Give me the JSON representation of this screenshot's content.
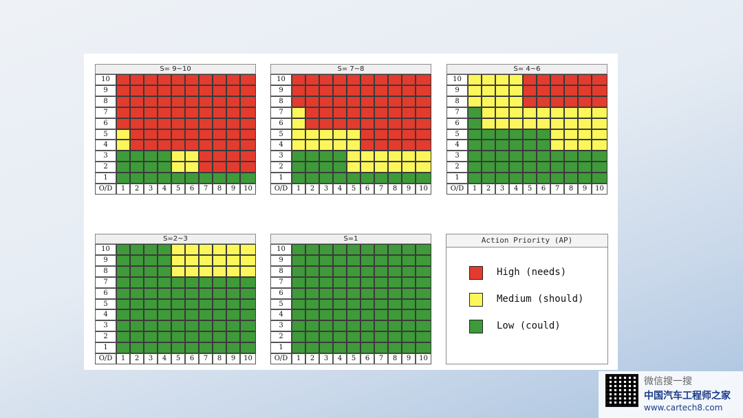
{
  "chart_data": {
    "type": "heatmap",
    "x_label": "O/D",
    "x_ticks": [
      "1",
      "2",
      "3",
      "4",
      "5",
      "6",
      "7",
      "8",
      "9",
      "10"
    ],
    "y_ticks": [
      "10",
      "9",
      "8",
      "7",
      "6",
      "5",
      "4",
      "3",
      "2",
      "1"
    ],
    "colors": {
      "H": "#e33b2e",
      "M": "#fbf65a",
      "L": "#3f9a3a"
    },
    "panels": [
      {
        "title": "S= 9~10",
        "rows": [
          "HHHHHHHHHH",
          "HHHHHHHHHH",
          "HHHHHHHHHH",
          "HHHHHHHHHH",
          "HHHHHHHHHH",
          "MHHHHHHHHH",
          "MHHHHHHHHH",
          "LLLLMMHHHH",
          "LLLLMMHHHH",
          "LLLLLLLLLL"
        ]
      },
      {
        "title": "S= 7~8",
        "rows": [
          "HHHHHHHHHH",
          "HHHHHHHHHH",
          "HHHHHHHHHH",
          "MHHHHHHHHH",
          "MHHHHHHHHH",
          "MMMMMHHHHH",
          "MMMMMHHHHH",
          "LLLLMMMMMM",
          "LLLLMMMMMM",
          "LLLLLLLLLL"
        ]
      },
      {
        "title": "S= 4~6",
        "rows": [
          "MMMMHHHHHH",
          "MMMMHHHHHH",
          "MMMMHHHHHH",
          "LMMMMMMMMM",
          "LMMMMMMMMM",
          "LLLLLLMMMM",
          "LLLLLLMMMM",
          "LLLLLLLLLL",
          "LLLLLLLLLL",
          "LLLLLLLLLL"
        ]
      },
      {
        "title": "S=2~3",
        "rows": [
          "LLLLMMMMMM",
          "LLLLMMMMMM",
          "LLLLMMMMMM",
          "LLLLLLLLLL",
          "LLLLLLLLLL",
          "LLLLLLLLLL",
          "LLLLLLLLLL",
          "LLLLLLLLLL",
          "LLLLLLLLLL",
          "LLLLLLLLLL"
        ]
      },
      {
        "title": "S=1",
        "rows": [
          "LLLLLLLLLL",
          "LLLLLLLLLL",
          "LLLLLLLLLL",
          "LLLLLLLLLL",
          "LLLLLLLLLL",
          "LLLLLLLLLL",
          "LLLLLLLLLL",
          "LLLLLLLLLL",
          "LLLLLLLLLL",
          "LLLLLLLLLL"
        ]
      }
    ]
  },
  "legend": {
    "title": "Action Priority (AP)",
    "items": [
      {
        "key": "H",
        "label": "High (needs)"
      },
      {
        "key": "M",
        "label": "Medium (should)"
      },
      {
        "key": "L",
        "label": "Low (could)"
      }
    ]
  },
  "watermark": {
    "search_text": "微信搜一搜",
    "name": "中国汽车工程师之家",
    "url": "www.cartech8.com"
  }
}
